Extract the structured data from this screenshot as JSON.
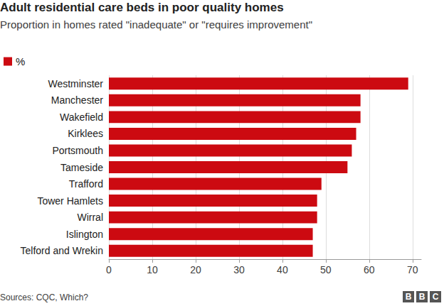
{
  "chart_data": {
    "type": "bar",
    "orientation": "horizontal",
    "title": "Adult residential care beds in poor quality homes",
    "subtitle": "Proportion in homes rated \"inadequate\" or \"requires improvement\"",
    "categories": [
      "Westminster",
      "Manchester",
      "Wakefield",
      "Kirklees",
      "Portsmouth",
      "Tameside",
      "Trafford",
      "Tower Hamlets",
      "Wirral",
      "Islington",
      "Telford and Wrekin"
    ],
    "series": [
      {
        "name": "%",
        "color": "#cc0a11",
        "values": [
          69,
          58,
          58,
          57,
          56,
          55,
          49,
          48,
          48,
          47,
          47
        ]
      }
    ],
    "xlim": [
      0,
      72
    ],
    "xticks": [
      0,
      10,
      20,
      30,
      40,
      50,
      60,
      70
    ],
    "grid": true,
    "legend": "top-left",
    "source": "Sources: CQC, Which?",
    "credit": "BBC"
  }
}
